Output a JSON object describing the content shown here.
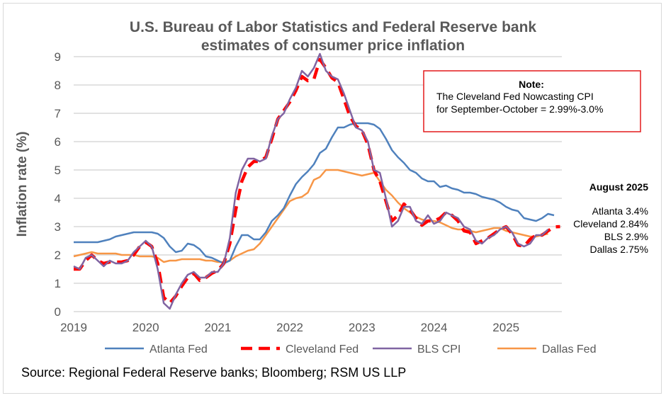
{
  "chart_data": {
    "type": "line",
    "title": [
      "U.S. Bureau of Labor Statistics and Federal Reserve bank",
      "estimates of consumer price inflation"
    ],
    "xlabel": "",
    "ylabel": "Inflation rate (%)",
    "ylim": [
      0,
      9
    ],
    "yticks": [
      "0",
      "1",
      "2",
      "3",
      "4",
      "5",
      "6",
      "7",
      "8",
      "9"
    ],
    "xticks": [
      "2019",
      "2020",
      "2021",
      "2022",
      "2023",
      "2024",
      "2025"
    ],
    "x_start": "Jan 2019",
    "x_unit": "monthly",
    "grid": true,
    "legend_position": "bottom",
    "series": [
      {
        "name": "Atlanta Fed",
        "color": "#4f81bd",
        "style": "solid",
        "values": [
          2.45,
          2.45,
          2.45,
          2.45,
          2.45,
          2.5,
          2.55,
          2.65,
          2.7,
          2.75,
          2.8,
          2.8,
          2.8,
          2.8,
          2.75,
          2.6,
          2.3,
          2.1,
          2.15,
          2.4,
          2.35,
          2.2,
          1.95,
          1.9,
          1.8,
          1.7,
          1.8,
          2.3,
          2.7,
          2.7,
          2.55,
          2.55,
          2.8,
          3.2,
          3.4,
          3.65,
          4.1,
          4.5,
          4.75,
          4.95,
          5.2,
          5.6,
          5.75,
          6.15,
          6.5,
          6.5,
          6.6,
          6.65,
          6.65,
          6.65,
          6.6,
          6.45,
          6.1,
          5.7,
          5.45,
          5.25,
          5.0,
          4.9,
          4.7,
          4.6,
          4.6,
          4.4,
          4.45,
          4.35,
          4.3,
          4.2,
          4.2,
          4.15,
          4.05,
          4.0,
          3.95,
          3.85,
          3.7,
          3.6,
          3.55,
          3.3,
          3.25,
          3.2,
          3.3,
          3.45,
          3.4
        ]
      },
      {
        "name": "Cleveland Fed",
        "color": "#ff0000",
        "style": "dashed",
        "values": [
          1.5,
          1.5,
          1.8,
          2.0,
          1.8,
          1.7,
          1.75,
          1.75,
          1.75,
          1.8,
          2.0,
          2.3,
          2.45,
          2.3,
          1.7,
          0.5,
          0.3,
          0.55,
          0.9,
          1.2,
          1.35,
          1.1,
          1.2,
          1.35,
          1.45,
          1.7,
          2.4,
          3.6,
          4.6,
          5.1,
          5.3,
          5.3,
          5.45,
          6.1,
          6.8,
          7.1,
          7.4,
          7.8,
          8.3,
          8.15,
          8.2,
          8.9,
          8.6,
          8.25,
          8.1,
          7.5,
          6.9,
          6.55,
          6.4,
          5.9,
          5.0,
          4.6,
          3.9,
          3.2,
          3.4,
          3.8,
          3.6,
          3.3,
          3.05,
          3.2,
          3.2,
          3.3,
          3.5,
          3.4,
          3.2,
          2.85,
          2.8,
          2.4,
          2.5,
          2.6,
          2.75,
          2.9,
          3.0,
          2.75,
          2.35,
          2.3,
          2.55,
          2.7,
          2.7,
          2.85,
          2.99,
          3.0
        ]
      },
      {
        "name": "BLS CPI",
        "color": "#8064a2",
        "style": "solid",
        "values": [
          1.6,
          1.5,
          1.9,
          2.0,
          1.8,
          1.6,
          1.8,
          1.7,
          1.7,
          1.8,
          2.1,
          2.3,
          2.5,
          2.3,
          1.5,
          0.3,
          0.1,
          0.6,
          1.0,
          1.3,
          1.4,
          1.2,
          1.2,
          1.4,
          1.4,
          1.7,
          2.6,
          4.2,
          5.0,
          5.4,
          5.4,
          5.3,
          5.4,
          6.2,
          6.8,
          7.0,
          7.5,
          7.9,
          8.5,
          8.3,
          8.6,
          9.1,
          8.5,
          8.3,
          8.2,
          7.7,
          7.1,
          6.5,
          6.4,
          6.0,
          5.0,
          4.9,
          4.0,
          3.0,
          3.2,
          3.7,
          3.7,
          3.2,
          3.1,
          3.4,
          3.1,
          3.2,
          3.5,
          3.4,
          3.3,
          3.0,
          2.9,
          2.5,
          2.4,
          2.6,
          2.7,
          2.9,
          3.0,
          2.8,
          2.4,
          2.3,
          2.4,
          2.7,
          2.7,
          2.9
        ]
      },
      {
        "name": "Dallas Fed",
        "color": "#f79646",
        "style": "solid",
        "values": [
          1.95,
          2.0,
          2.05,
          2.1,
          2.05,
          2.05,
          2.05,
          2.05,
          2.0,
          2.0,
          2.0,
          1.95,
          1.95,
          1.95,
          1.9,
          1.75,
          1.8,
          1.8,
          1.85,
          1.85,
          1.85,
          1.85,
          1.8,
          1.8,
          1.75,
          1.75,
          1.8,
          1.95,
          2.05,
          2.15,
          2.2,
          2.4,
          2.7,
          3.0,
          3.3,
          3.6,
          3.9,
          4.0,
          4.05,
          4.2,
          4.65,
          4.75,
          5.0,
          5.0,
          5.0,
          4.95,
          4.9,
          4.85,
          4.8,
          4.85,
          4.9,
          4.6,
          4.3,
          4.1,
          3.85,
          3.65,
          3.5,
          3.35,
          3.25,
          3.2,
          3.2,
          3.15,
          3.05,
          2.95,
          2.9,
          2.9,
          2.85,
          2.8,
          2.85,
          2.9,
          2.95,
          2.95,
          2.85,
          2.8,
          2.75,
          2.7,
          2.65,
          2.65,
          2.7,
          2.75
        ]
      }
    ],
    "annotations": {
      "note_title": "Note:",
      "note_lines": [
        "The Cleveland Fed Nowcasting CPI",
        "for September-October = 2.99%-3.0%"
      ],
      "note_border_color": "#e31a1c",
      "latest_title": "August 2025",
      "latest_lines": [
        "Atlanta 3.4%",
        "Cleveland 2.84%",
        "BLS 2.9%",
        "Dallas 2.75%"
      ]
    },
    "source": "Source: Regional Federal Reserve banks; Bloomberg; RSM US LLP"
  }
}
